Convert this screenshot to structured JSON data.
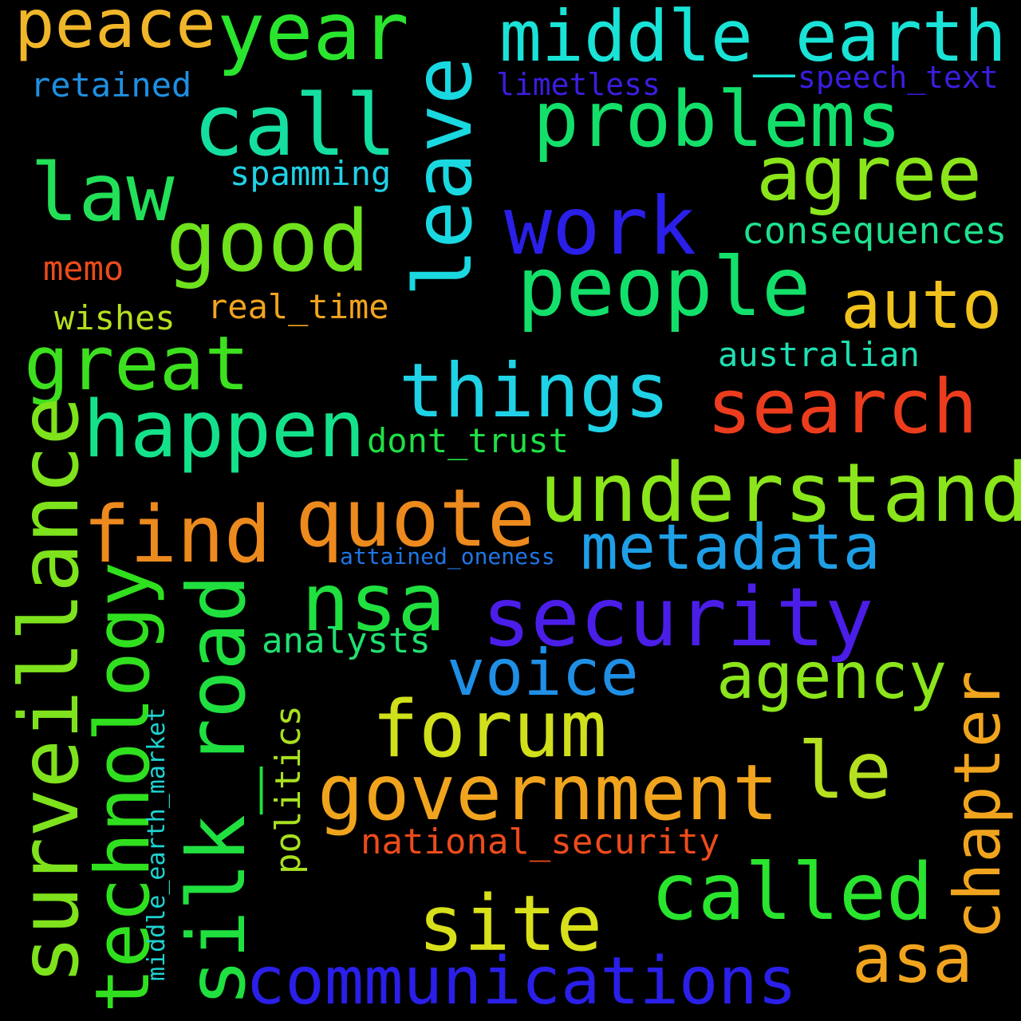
{
  "background": "#000000",
  "words": [
    {
      "text": "middle_earth",
      "color": "#19e3d6"
    },
    {
      "text": "peace",
      "color": "#f0b62a"
    },
    {
      "text": "year",
      "color": "#2ae52e"
    },
    {
      "text": "retained",
      "color": "#1f8fe0"
    },
    {
      "text": "call",
      "color": "#15dfa0"
    },
    {
      "text": "problems",
      "color": "#13e06a"
    },
    {
      "text": "limetless",
      "color": "#3a1ee0"
    },
    {
      "text": "speech_text",
      "color": "#3a1ee0"
    },
    {
      "text": "agree",
      "color": "#8ae51a"
    },
    {
      "text": "law",
      "color": "#22e058"
    },
    {
      "text": "spamming",
      "color": "#1fd2e6"
    },
    {
      "text": "work",
      "color": "#2a1fe8"
    },
    {
      "text": "good",
      "color": "#6ee21c"
    },
    {
      "text": "consequences",
      "color": "#1fe08e"
    },
    {
      "text": "leave",
      "color": "#19d8e0"
    },
    {
      "text": "memo",
      "color": "#ec4b1c"
    },
    {
      "text": "people",
      "color": "#13e06a"
    },
    {
      "text": "auto",
      "color": "#f0c21e"
    },
    {
      "text": "wishes",
      "color": "#b5e01f"
    },
    {
      "text": "real_time",
      "color": "#f0a41e"
    },
    {
      "text": "great",
      "color": "#3de01f"
    },
    {
      "text": "australian",
      "color": "#1fe0b2"
    },
    {
      "text": "things",
      "color": "#1fd2e6"
    },
    {
      "text": "search",
      "color": "#ec3c1e"
    },
    {
      "text": "happen",
      "color": "#14e28a"
    },
    {
      "text": "dont_trust",
      "color": "#20df46"
    },
    {
      "text": "understand",
      "color": "#8ae51a"
    },
    {
      "text": "find",
      "color": "#ec8a1e"
    },
    {
      "text": "quote",
      "color": "#ec8a1e"
    },
    {
      "text": "metadata",
      "color": "#1f9fe6"
    },
    {
      "text": "attained_oneness",
      "color": "#1f76e6"
    },
    {
      "text": "surveillance",
      "color": "#7ee21c"
    },
    {
      "text": "technology",
      "color": "#30e01f"
    },
    {
      "text": "nsa",
      "color": "#20e040"
    },
    {
      "text": "security",
      "color": "#4a1ee8"
    },
    {
      "text": "analysts",
      "color": "#20e070"
    },
    {
      "text": "voice",
      "color": "#1f8fe6"
    },
    {
      "text": "agency",
      "color": "#8ae51a"
    },
    {
      "text": "silk_road",
      "color": "#20e040"
    },
    {
      "text": "forum",
      "color": "#d0e01a"
    },
    {
      "text": "politics",
      "color": "#a8e01f"
    },
    {
      "text": "middle_earth_market",
      "color": "#1fd2d2"
    },
    {
      "text": "chapter",
      "color": "#f0a41e"
    },
    {
      "text": "le",
      "color": "#b5e01f"
    },
    {
      "text": "government",
      "color": "#f0a41e"
    },
    {
      "text": "national_security",
      "color": "#ec4b1c"
    },
    {
      "text": "called",
      "color": "#2ae52e"
    },
    {
      "text": "site",
      "color": "#d8e01a"
    },
    {
      "text": "asa",
      "color": "#f0a41e"
    },
    {
      "text": "communications",
      "color": "#2a1fe8"
    }
  ]
}
